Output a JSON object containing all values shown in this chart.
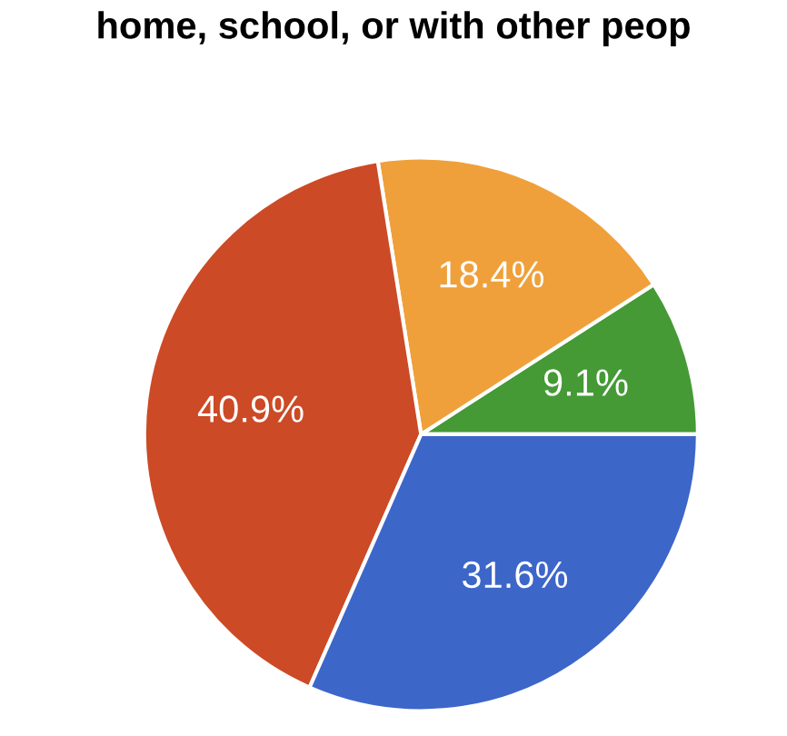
{
  "chart_data": {
    "type": "pie",
    "title": "home, school, or with other peop",
    "categories": [
      null,
      null,
      null,
      null
    ],
    "values": [
      9.1,
      18.4,
      40.9,
      31.6
    ],
    "colors": [
      "#459a36",
      "#f0a03a",
      "#cc4a25",
      "#3d66c9"
    ],
    "value_labels": [
      "9.1%",
      "18.4%",
      "40.9%",
      "31.6%"
    ]
  }
}
